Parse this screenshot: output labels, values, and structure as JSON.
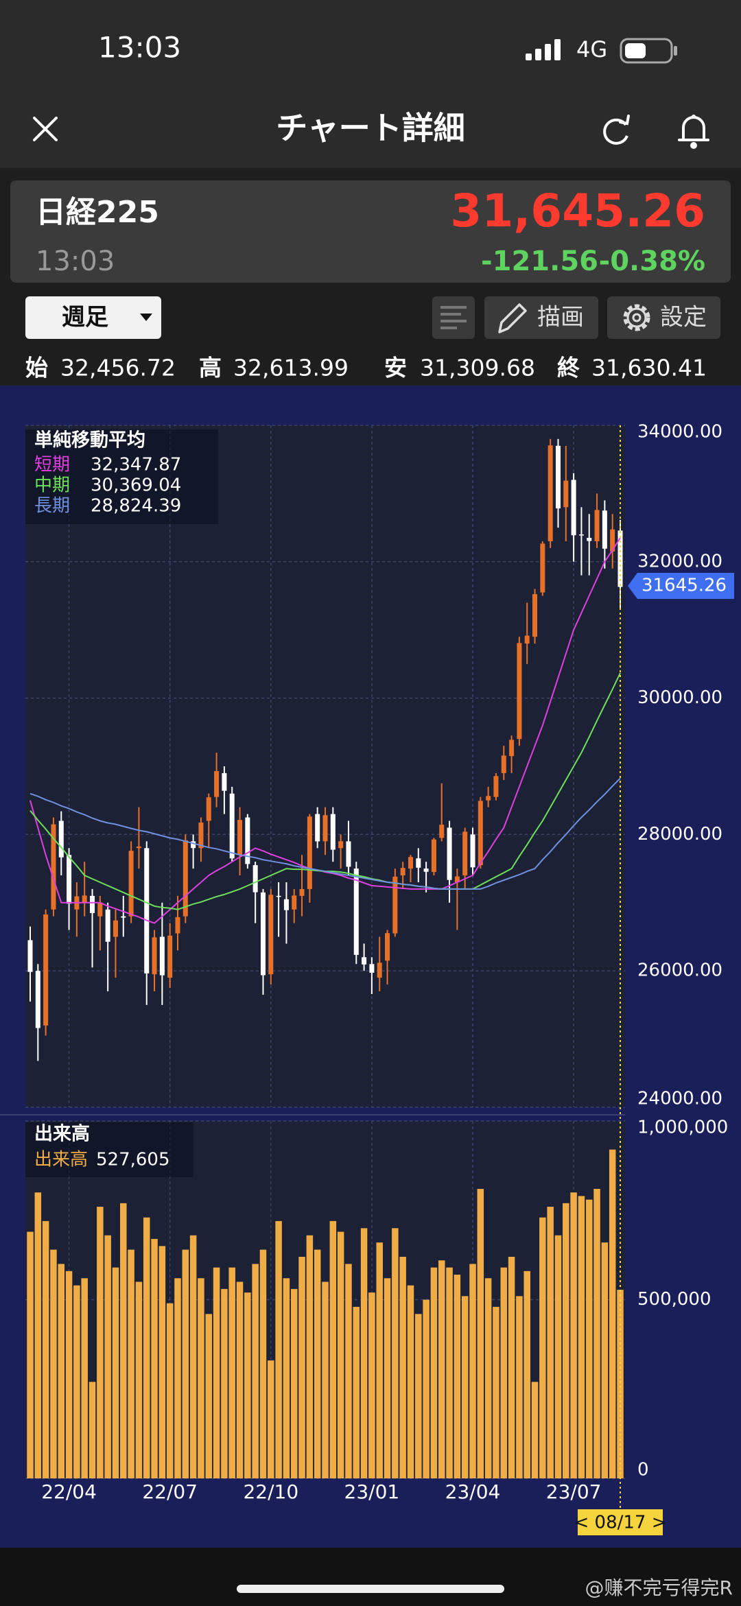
{
  "status": {
    "time": "13:03",
    "network": "4G"
  },
  "nav": {
    "title": "チャート詳細"
  },
  "quote": {
    "name": "日経225",
    "price": "31,645.26",
    "time": "13:03",
    "change": "-121.56",
    "change_pct": "-0.38%"
  },
  "controls": {
    "period": "週足",
    "draw": "描画",
    "settings": "設定"
  },
  "ohlc": [
    {
      "label": "始",
      "value": "32,456.72"
    },
    {
      "label": "高",
      "value": "32,613.99"
    },
    {
      "label": "安",
      "value": "31,309.68"
    },
    {
      "label": "終",
      "value": "31,630.41"
    }
  ],
  "watermark": "@赚不完亏得完R",
  "chart_data": [
    {
      "type": "candlestick",
      "title": "単純移動平均",
      "up_color": "#e8712a",
      "down_color": "#ffffff",
      "grid": true,
      "ylim": [
        24000,
        34000
      ],
      "yticks": [
        {
          "value": 24000,
          "label": "24000.00"
        },
        {
          "value": 26000,
          "label": "26000.00"
        },
        {
          "value": 28000,
          "label": "28000.00"
        },
        {
          "value": 30000,
          "label": "30000.00"
        },
        {
          "value": 32000,
          "label": "32000.00"
        },
        {
          "value": 34000,
          "label": "34000.00"
        }
      ],
      "last_price": {
        "value": 31645.26,
        "label": "31645.26"
      },
      "open": [
        26450,
        26000,
        25200,
        26900,
        28200,
        27700,
        26900,
        27000,
        27100,
        26800,
        26900,
        26500,
        26800,
        26800,
        27800,
        27800,
        25950,
        26500,
        25900,
        26550,
        26800,
        27900,
        27800,
        28200,
        28550,
        28900,
        28600,
        27700,
        28250,
        27550,
        27150,
        25950,
        27100,
        27050,
        26900,
        27100,
        27200,
        28300,
        27900,
        28300,
        27800,
        27900,
        27500,
        26200,
        26100,
        25900,
        26150,
        26550,
        27400,
        27500,
        27650,
        27500,
        27450,
        27950,
        28100,
        27300,
        27400,
        28000,
        27550,
        28500,
        28550,
        28900,
        29150,
        29400,
        30800,
        30900,
        31550,
        32300,
        33700,
        32800,
        33200,
        32400,
        32350,
        32300,
        32750,
        32150,
        32456.72
      ],
      "high": [
        26650,
        26100,
        26900,
        28250,
        28340,
        27800,
        27300,
        27600,
        27200,
        27100,
        27000,
        26900,
        27100,
        27900,
        28400,
        27900,
        26600,
        27000,
        26700,
        27100,
        28000,
        28000,
        28250,
        28600,
        29200,
        29000,
        28700,
        28400,
        28300,
        27600,
        27200,
        27200,
        27300,
        27300,
        27200,
        27700,
        28300,
        28400,
        28400,
        28400,
        28000,
        28200,
        27600,
        26400,
        26200,
        26500,
        26600,
        27500,
        27600,
        27700,
        27800,
        27600,
        27950,
        28750,
        28200,
        27500,
        28100,
        28100,
        28550,
        28700,
        28900,
        29300,
        29450,
        30900,
        31400,
        31600,
        32300,
        33800,
        33800,
        33700,
        33300,
        32800,
        32700,
        33000,
        32900,
        32700,
        32613.99
      ],
      "low": [
        25550,
        24680,
        25050,
        26800,
        27400,
        26600,
        26500,
        26800,
        26050,
        26300,
        25700,
        25900,
        26500,
        26700,
        27500,
        25500,
        25700,
        25500,
        25750,
        26300,
        26700,
        27500,
        27600,
        27800,
        28400,
        28300,
        27600,
        27400,
        27500,
        26700,
        25650,
        25800,
        26500,
        26400,
        26700,
        26800,
        27000,
        27800,
        27700,
        27600,
        27500,
        27400,
        26100,
        26000,
        25660,
        25700,
        25800,
        26500,
        27200,
        27300,
        27300,
        27150,
        27400,
        27900,
        27000,
        26600,
        27200,
        27400,
        27500,
        28400,
        28500,
        28800,
        28900,
        29300,
        30500,
        30800,
        31500,
        32200,
        32500,
        32300,
        32000,
        31800,
        31800,
        32200,
        31900,
        31900,
        31309.68
      ],
      "close": [
        25985,
        25162,
        26827,
        28149,
        27665,
        26985,
        27093,
        27105,
        26847,
        27003,
        26427,
        26739,
        26781,
        27761,
        27824,
        25963,
        26491,
        25935,
        26517,
        26788,
        27914,
        27801,
        28175,
        28546,
        28930,
        28641,
        27650,
        28214,
        27567,
        27153,
        25937,
        27116,
        27090,
        26890,
        27105,
        27199,
        28263,
        27899,
        28283,
        27777,
        27901,
        27527,
        26235,
        26094,
        25973,
        26119,
        26553,
        27382,
        27509,
        27670,
        27513,
        27453,
        27927,
        28143,
        27333,
        27385,
        28041,
        27518,
        28493,
        28564,
        28856,
        29157,
        29388,
        30808,
        30916,
        31524,
        32265,
        33706,
        32782,
        33189,
        32388,
        32391,
        32304,
        32759,
        32192,
        32474,
        31630.41
      ],
      "series": [
        {
          "name": "短期",
          "color": "#e040e0",
          "legend_value": "32,347.87",
          "values": [
            28500,
            28100,
            27700,
            27350,
            27000,
            27000,
            27000,
            27000,
            27000,
            27000,
            26950,
            26910,
            26870,
            26830,
            26790,
            26740,
            26700,
            26800,
            26900,
            27000,
            27100,
            27200,
            27300,
            27400,
            27470,
            27530,
            27600,
            27670,
            27730,
            27800,
            27760,
            27710,
            27670,
            27630,
            27590,
            27540,
            27500,
            27480,
            27450,
            27430,
            27400,
            27360,
            27330,
            27290,
            27250,
            27240,
            27230,
            27220,
            27210,
            27200,
            27200,
            27200,
            27200,
            27200,
            27250,
            27300,
            27350,
            27400,
            27580,
            27750,
            27930,
            28100,
            28400,
            28700,
            29000,
            29300,
            29600,
            29950,
            30300,
            30650,
            31000,
            31250,
            31500,
            31750,
            32000,
            32170,
            32347.87
          ]
        },
        {
          "name": "中期",
          "color": "#6ee05a",
          "legend_value": "30,369.04",
          "values": [
            28350,
            28210,
            28080,
            27940,
            27810,
            27670,
            27540,
            27400,
            27350,
            27300,
            27250,
            27200,
            27150,
            27100,
            27050,
            27000,
            26950,
            26930,
            26920,
            26900,
            26940,
            26980,
            27010,
            27050,
            27090,
            27120,
            27160,
            27200,
            27250,
            27300,
            27350,
            27400,
            27450,
            27500,
            27490,
            27490,
            27480,
            27470,
            27460,
            27460,
            27450,
            27430,
            27400,
            27380,
            27350,
            27330,
            27300,
            27290,
            27270,
            27260,
            27240,
            27230,
            27210,
            27200,
            27200,
            27200,
            27200,
            27200,
            27260,
            27320,
            27380,
            27440,
            27500,
            27680,
            27850,
            28030,
            28200,
            28400,
            28600,
            28800,
            29000,
            29200,
            29430,
            29670,
            29900,
            30130,
            30369.04
          ]
        },
        {
          "name": "長期",
          "color": "#7090e0",
          "legend_value": "28,824.39",
          "values": [
            28600,
            28560,
            28510,
            28470,
            28420,
            28380,
            28330,
            28290,
            28240,
            28200,
            28170,
            28150,
            28120,
            28090,
            28060,
            28040,
            28010,
            27980,
            27950,
            27930,
            27900,
            27870,
            27840,
            27810,
            27790,
            27760,
            27730,
            27700,
            27680,
            27660,
            27630,
            27610,
            27590,
            27570,
            27540,
            27520,
            27500,
            27480,
            27460,
            27440,
            27420,
            27400,
            27380,
            27360,
            27340,
            27320,
            27300,
            27290,
            27270,
            27260,
            27240,
            27230,
            27210,
            27200,
            27200,
            27200,
            27200,
            27200,
            27200,
            27240,
            27290,
            27330,
            27370,
            27410,
            27460,
            27500,
            27630,
            27750,
            27880,
            28000,
            28130,
            28250,
            28360,
            28480,
            28590,
            28710,
            28824.39
          ]
        }
      ]
    },
    {
      "type": "bar",
      "title": "出来高",
      "grid": true,
      "crosshair_label": "< 08/17 >",
      "ylim": [
        0,
        1000000
      ],
      "yticks": [
        0,
        {
          "value": 500000,
          "label": "500,000"
        },
        {
          "value": 1000000,
          "label": "1,000,000"
        }
      ],
      "categories": [
        null,
        null,
        null,
        null,
        null,
        "22/04",
        null,
        null,
        null,
        null,
        null,
        null,
        null,
        null,
        null,
        null,
        null,
        null,
        "22/07",
        null,
        null,
        null,
        null,
        null,
        null,
        null,
        null,
        null,
        null,
        null,
        null,
        "22/10",
        null,
        null,
        null,
        null,
        null,
        null,
        null,
        null,
        null,
        null,
        null,
        null,
        "23/01",
        null,
        null,
        null,
        null,
        null,
        null,
        null,
        null,
        null,
        null,
        null,
        null,
        "23/04",
        null,
        null,
        null,
        null,
        null,
        null,
        null,
        null,
        null,
        null,
        null,
        null,
        "23/07",
        null,
        null,
        null,
        null,
        null,
        null
      ],
      "series": [
        {
          "name": "出来高",
          "color": "#f0ad45",
          "legend_value": "527,605",
          "values": [
            690000,
            800000,
            720000,
            640000,
            600000,
            580000,
            540000,
            560000,
            270000,
            760000,
            680000,
            590000,
            770000,
            640000,
            550000,
            730000,
            670000,
            650000,
            490000,
            560000,
            640000,
            680000,
            560000,
            460000,
            590000,
            530000,
            590000,
            550000,
            520000,
            600000,
            640000,
            330000,
            720000,
            560000,
            530000,
            620000,
            680000,
            640000,
            550000,
            720000,
            690000,
            600000,
            480000,
            700000,
            520000,
            660000,
            560000,
            700000,
            620000,
            540000,
            460000,
            500000,
            590000,
            610000,
            590000,
            570000,
            510000,
            600000,
            810000,
            560000,
            480000,
            590000,
            620000,
            510000,
            580000,
            270000,
            730000,
            760000,
            680000,
            770000,
            800000,
            790000,
            780000,
            810000,
            660000,
            920000,
            527605
          ]
        }
      ]
    }
  ]
}
